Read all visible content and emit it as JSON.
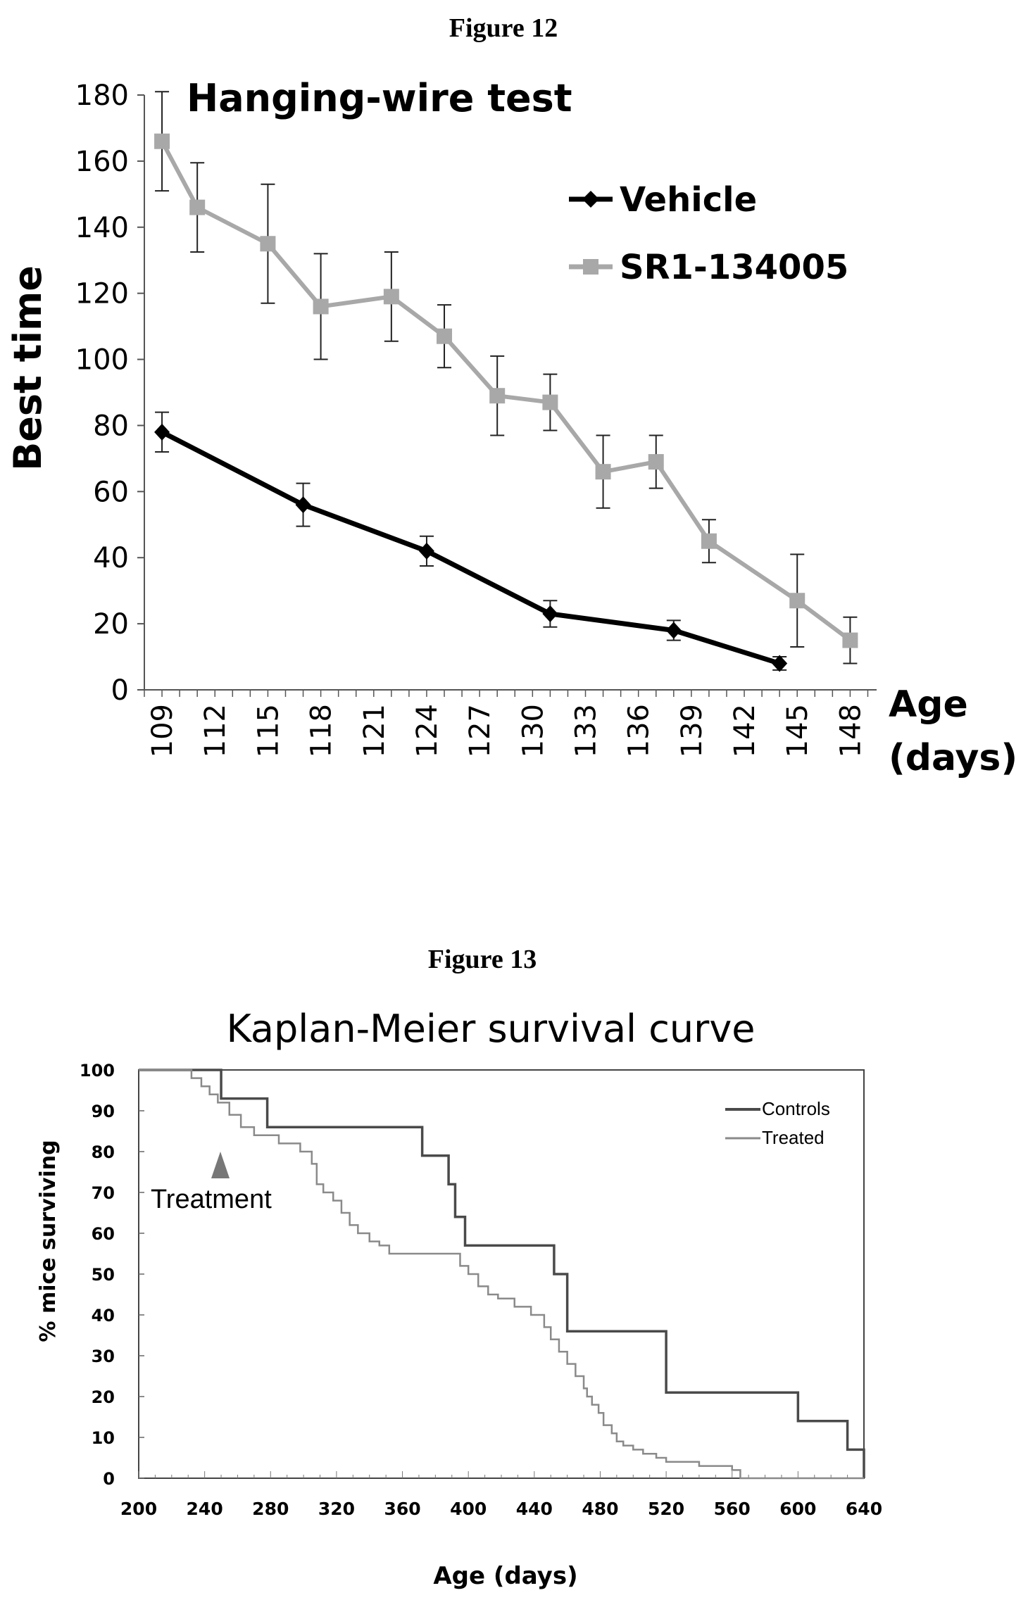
{
  "figure12": {
    "heading": "Figure 12",
    "chart_title": "Hanging-wire test",
    "y_label": "Best time",
    "x_label_line1": "Age",
    "x_label_line2": "(days)"
  },
  "figure13": {
    "heading": "Figure 13",
    "chart_title": "Kaplan-Meier survival curve",
    "y_label": "% mice surviving",
    "x_label": "Age (days)",
    "annotation": "Treatment"
  },
  "chart_data": [
    {
      "type": "line",
      "title": "Hanging-wire test",
      "xlabel": "Age (days)",
      "ylabel": "Best time",
      "x_ticks": [
        109,
        112,
        115,
        118,
        121,
        124,
        127,
        130,
        133,
        136,
        139,
        142,
        145,
        148
      ],
      "y_ticks": [
        0,
        20,
        40,
        60,
        80,
        100,
        120,
        140,
        160,
        180
      ],
      "xlim": [
        108,
        149.5
      ],
      "ylim": [
        0,
        180
      ],
      "grid": false,
      "legend": "top-right",
      "colors": {
        "Vehicle": "#000000",
        "SR1-134005": "#a8a8a8"
      },
      "series": [
        {
          "name": "Vehicle",
          "marker": "diamond",
          "x": [
            109,
            117,
            124,
            131,
            138,
            144
          ],
          "y": [
            78,
            56,
            42,
            23,
            18,
            8
          ],
          "err": [
            6,
            6.5,
            4.5,
            4,
            3,
            2
          ]
        },
        {
          "name": "SR1-134005",
          "marker": "square",
          "x": [
            109,
            111,
            115,
            118,
            122,
            125,
            128,
            131,
            134,
            137,
            140,
            145,
            148
          ],
          "y": [
            166,
            146,
            135,
            116,
            119,
            107,
            89,
            87,
            66,
            69,
            45,
            27,
            15
          ],
          "err": [
            15,
            13.5,
            18,
            16,
            13.5,
            9.5,
            12,
            8.5,
            11,
            8,
            6.5,
            14,
            7
          ]
        }
      ]
    },
    {
      "type": "line",
      "title": "Kaplan-Meier survival curve",
      "xlabel": "Age (days)",
      "ylabel": "% mice surviving",
      "x_ticks": [
        200,
        240,
        280,
        320,
        360,
        400,
        440,
        480,
        520,
        560,
        600,
        640
      ],
      "y_ticks": [
        0,
        10,
        20,
        30,
        40,
        50,
        60,
        70,
        80,
        90,
        100
      ],
      "xlim": [
        200,
        640
      ],
      "ylim": [
        0,
        100
      ],
      "grid": false,
      "legend": "top-right",
      "step": true,
      "colors": {
        "Controls": "#4a4a4a",
        "Treated": "#8a8a8a"
      },
      "annotation": {
        "text": "Treatment",
        "x": 250,
        "y": 78
      },
      "series": [
        {
          "name": "Controls",
          "x": [
            200,
            250,
            258,
            278,
            285,
            372,
            388,
            392,
            398,
            452,
            460,
            520,
            560,
            600,
            630,
            640
          ],
          "y": [
            100,
            93,
            93,
            86,
            86,
            79,
            72,
            64,
            57,
            50,
            36,
            21,
            21,
            14,
            7,
            0
          ]
        },
        {
          "name": "Treated",
          "x": [
            200,
            232,
            238,
            243,
            248,
            255,
            262,
            270,
            285,
            298,
            305,
            308,
            312,
            318,
            323,
            328,
            333,
            340,
            346,
            352,
            395,
            400,
            406,
            412,
            418,
            428,
            438,
            446,
            450,
            455,
            460,
            465,
            470,
            472,
            475,
            479,
            482,
            487,
            490,
            494,
            500,
            506,
            514,
            520,
            540,
            560,
            565,
            640
          ],
          "y": [
            100,
            98,
            96,
            94,
            92,
            89,
            86,
            84,
            82,
            80,
            77,
            72,
            70,
            68,
            65,
            62,
            60,
            58,
            57,
            55,
            52,
            50,
            47,
            45,
            44,
            42,
            40,
            37,
            34,
            31,
            28,
            25,
            22,
            20,
            18,
            16,
            13,
            11,
            9,
            8,
            7,
            6,
            5,
            4,
            3,
            2,
            0,
            0
          ]
        }
      ]
    }
  ]
}
